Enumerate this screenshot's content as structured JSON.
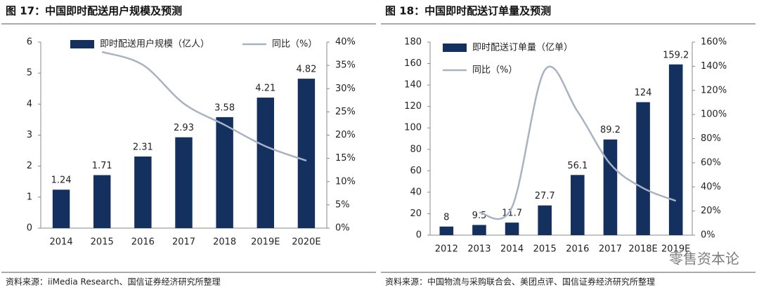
{
  "chart_data": [
    {
      "type": "bar",
      "title": "图 17：中国即时配送用户规模及预测",
      "categories": [
        "2014",
        "2015",
        "2016",
        "2017",
        "2018",
        "2019E",
        "2020E"
      ],
      "series": [
        {
          "name": "即时配送用户规模（亿人）",
          "type": "bar",
          "color": "#14305e",
          "values": [
            1.24,
            1.71,
            2.31,
            2.93,
            3.58,
            4.21,
            4.82
          ]
        },
        {
          "name": "同比（%）",
          "type": "line",
          "axis": "y2",
          "color": "#a7b2c4",
          "values": [
            null,
            37.9,
            35.1,
            26.8,
            22.2,
            17.6,
            14.5
          ]
        }
      ],
      "ylim": [
        0,
        6
      ],
      "yticks": [
        0,
        1,
        2,
        3,
        4,
        5,
        6
      ],
      "y2lim": [
        0,
        40
      ],
      "y2ticks": [
        {
          "value": 0,
          "label": "0%"
        },
        {
          "value": 5,
          "label": "5%"
        },
        {
          "value": 10,
          "label": "10%"
        },
        {
          "value": 15,
          "label": "15%"
        },
        {
          "value": 20,
          "label": "20%"
        },
        {
          "value": 25,
          "label": "25%"
        },
        {
          "value": 30,
          "label": "30%"
        },
        {
          "value": 35,
          "label": "35%"
        },
        {
          "value": 40,
          "label": "40%"
        }
      ],
      "legend": "top",
      "source": "资料来源：iiMedia Research、国信证券经济研究所整理"
    },
    {
      "type": "bar",
      "title": "图 18：中国即时配送订单量及预测",
      "categories": [
        "2012",
        "2013",
        "2014",
        "2015",
        "2016",
        "2017",
        "2018E",
        "2019E"
      ],
      "series": [
        {
          "name": "即时配送订单量（亿单）",
          "type": "bar",
          "color": "#14305e",
          "values": [
            8,
            9.5,
            11.7,
            27.7,
            56.1,
            89.2,
            124,
            159.2
          ]
        },
        {
          "name": "同比（%）",
          "type": "line",
          "axis": "y2",
          "color": "#a7b2c4",
          "values": [
            null,
            18.75,
            23.2,
            136.8,
            102.5,
            59,
            39,
            28.4
          ]
        }
      ],
      "ylim": [
        0,
        180
      ],
      "yticks": [
        0,
        20,
        40,
        60,
        80,
        100,
        120,
        140,
        160,
        180
      ],
      "y2lim": [
        0,
        160
      ],
      "y2ticks": [
        {
          "value": 0,
          "label": "0%"
        },
        {
          "value": 20,
          "label": "20%"
        },
        {
          "value": 40,
          "label": "40%"
        },
        {
          "value": 60,
          "label": "60%"
        },
        {
          "value": 80,
          "label": "80%"
        },
        {
          "value": 100,
          "label": "100%"
        },
        {
          "value": 120,
          "label": "120%"
        },
        {
          "value": 140,
          "label": "140%"
        },
        {
          "value": 160,
          "label": "160%"
        }
      ],
      "legend": "top-left",
      "source": "资料来源：中国物流与采购联合会、美团点评、国信证券经济研究所整理",
      "watermark": "零售资本论"
    }
  ]
}
